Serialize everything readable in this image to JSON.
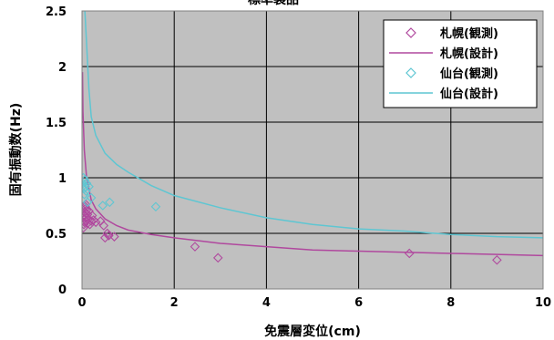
{
  "chart_data": {
    "type": "scatter",
    "title": "標準製品",
    "xlabel": "免震層変位(cm)",
    "ylabel": "固有振動数(Hz)",
    "xlim": [
      0,
      10
    ],
    "ylim": [
      0,
      2.5
    ],
    "x_ticks": [
      "0",
      "2",
      "4",
      "6",
      "8",
      "10"
    ],
    "y_ticks": [
      "0",
      "0.5",
      "1",
      "1.5",
      "2",
      "2.5"
    ],
    "grid": true,
    "legend_position": "top-right",
    "series": [
      {
        "name": "札幌(観測)",
        "kind": "scatter",
        "marker": "diamond",
        "color": "#b0489e",
        "points": [
          [
            0.03,
            0.55
          ],
          [
            0.04,
            0.58
          ],
          [
            0.05,
            0.6
          ],
          [
            0.05,
            0.63
          ],
          [
            0.06,
            0.66
          ],
          [
            0.06,
            0.69
          ],
          [
            0.07,
            0.72
          ],
          [
            0.07,
            0.74
          ],
          [
            0.08,
            0.76
          ],
          [
            0.08,
            0.68
          ],
          [
            0.09,
            0.64
          ],
          [
            0.1,
            0.61
          ],
          [
            0.1,
            0.71
          ],
          [
            0.12,
            0.59
          ],
          [
            0.12,
            0.67
          ],
          [
            0.14,
            0.63
          ],
          [
            0.15,
            0.7
          ],
          [
            0.17,
            0.58
          ],
          [
            0.2,
            0.61
          ],
          [
            0.22,
            0.66
          ],
          [
            0.25,
            0.62
          ],
          [
            0.3,
            0.6
          ],
          [
            0.4,
            0.61
          ],
          [
            0.47,
            0.57
          ],
          [
            0.5,
            0.46
          ],
          [
            0.55,
            0.5
          ],
          [
            0.58,
            0.48
          ],
          [
            0.7,
            0.47
          ],
          [
            2.45,
            0.38
          ],
          [
            2.95,
            0.28
          ],
          [
            7.1,
            0.32
          ],
          [
            9.0,
            0.26
          ]
        ]
      },
      {
        "name": "札幌(設計)",
        "kind": "line",
        "color": "#b0489e",
        "points": [
          [
            0.01,
            1.95
          ],
          [
            0.02,
            1.6
          ],
          [
            0.05,
            1.25
          ],
          [
            0.1,
            1.0
          ],
          [
            0.2,
            0.8
          ],
          [
            0.3,
            0.72
          ],
          [
            0.5,
            0.63
          ],
          [
            0.75,
            0.57
          ],
          [
            1.0,
            0.53
          ],
          [
            1.5,
            0.49
          ],
          [
            2.0,
            0.46
          ],
          [
            3.0,
            0.41
          ],
          [
            4.0,
            0.38
          ],
          [
            5.0,
            0.35
          ],
          [
            6.0,
            0.34
          ],
          [
            7.0,
            0.33
          ],
          [
            8.0,
            0.32
          ],
          [
            9.0,
            0.31
          ],
          [
            10.0,
            0.3
          ]
        ]
      },
      {
        "name": "仙台(観測)",
        "kind": "scatter",
        "marker": "diamond",
        "color": "#5ec6d2",
        "points": [
          [
            0.02,
            0.95
          ],
          [
            0.03,
            1.0
          ],
          [
            0.04,
            0.9
          ],
          [
            0.05,
            0.85
          ],
          [
            0.06,
            0.98
          ],
          [
            0.07,
            0.92
          ],
          [
            0.09,
            0.88
          ],
          [
            0.1,
            0.95
          ],
          [
            0.12,
            0.78
          ],
          [
            0.15,
            0.92
          ],
          [
            0.2,
            0.82
          ],
          [
            0.45,
            0.75
          ],
          [
            0.6,
            0.78
          ],
          [
            1.6,
            0.74
          ]
        ]
      },
      {
        "name": "仙台(設計)",
        "kind": "line",
        "color": "#5ec6d2",
        "points": [
          [
            0.05,
            2.6
          ],
          [
            0.1,
            2.2
          ],
          [
            0.15,
            1.8
          ],
          [
            0.2,
            1.55
          ],
          [
            0.3,
            1.38
          ],
          [
            0.5,
            1.22
          ],
          [
            0.75,
            1.12
          ],
          [
            1.0,
            1.05
          ],
          [
            1.5,
            0.93
          ],
          [
            2.0,
            0.84
          ],
          [
            3.0,
            0.73
          ],
          [
            4.0,
            0.64
          ],
          [
            5.0,
            0.58
          ],
          [
            6.0,
            0.54
          ],
          [
            7.0,
            0.52
          ],
          [
            8.0,
            0.49
          ],
          [
            9.0,
            0.47
          ],
          [
            10.0,
            0.46
          ]
        ]
      }
    ]
  }
}
